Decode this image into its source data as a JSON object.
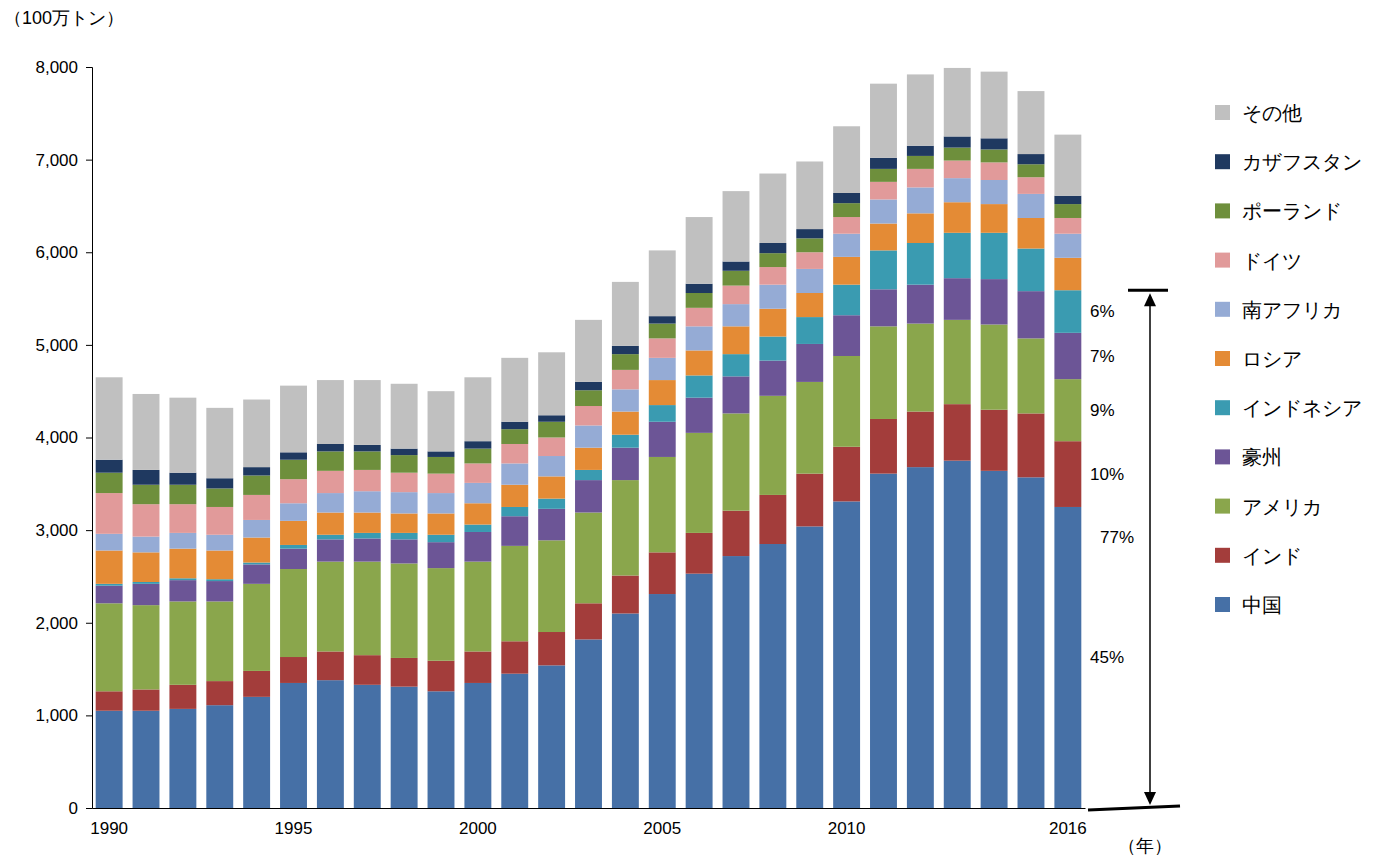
{
  "chart_data": {
    "type": "bar",
    "stacked": true,
    "legend": "right",
    "grid": false,
    "y_label": "（100万トン）",
    "x_label": "（年）",
    "categories": [
      "1990",
      null,
      null,
      null,
      null,
      "1995",
      null,
      null,
      null,
      null,
      "2000",
      null,
      null,
      null,
      null,
      "2005",
      null,
      null,
      null,
      null,
      "2010",
      null,
      null,
      null,
      null,
      null,
      "2016"
    ],
    "ylim": [
      0,
      8000
    ],
    "yticks": [
      0,
      {
        "value": 1000,
        "label": "1,000"
      },
      {
        "value": 2000,
        "label": "2,000"
      },
      {
        "value": 3000,
        "label": "3,000"
      },
      {
        "value": 4000,
        "label": "4,000"
      },
      {
        "value": 5000,
        "label": "5,000"
      },
      {
        "value": 6000,
        "label": "6,000"
      },
      {
        "value": 7000,
        "label": "7,000"
      },
      {
        "value": 8000,
        "label": "8,000"
      }
    ],
    "series": [
      {
        "name": "中国",
        "color": "#4670a6",
        "values": [
          1050,
          1050,
          1070,
          1110,
          1200,
          1350,
          1380,
          1330,
          1310,
          1260,
          1350,
          1450,
          1540,
          1820,
          2100,
          2310,
          2530,
          2720,
          2850,
          3040,
          3310,
          3610,
          3680,
          3750,
          3640,
          3570,
          3250
        ]
      },
      {
        "name": "インド",
        "color": "#a33d3b",
        "values": [
          210,
          230,
          260,
          260,
          280,
          280,
          310,
          320,
          310,
          330,
          340,
          350,
          360,
          390,
          410,
          450,
          440,
          490,
          530,
          570,
          590,
          590,
          600,
          610,
          660,
          690,
          710
        ]
      },
      {
        "name": "アメリカ",
        "color": "#8aa64c",
        "values": [
          950,
          910,
          900,
          860,
          940,
          950,
          970,
          1010,
          1020,
          1000,
          970,
          1030,
          990,
          980,
          1030,
          1030,
          1080,
          1050,
          1070,
          990,
          980,
          1000,
          950,
          910,
          920,
          810,
          670
        ]
      },
      {
        "name": "豪州",
        "color": "#6c5596",
        "values": [
          190,
          230,
          230,
          220,
          210,
          220,
          240,
          250,
          260,
          280,
          320,
          320,
          340,
          350,
          350,
          380,
          380,
          400,
          380,
          410,
          440,
          400,
          420,
          450,
          490,
          510,
          500
        ]
      },
      {
        "name": "インドネシア",
        "color": "#3a9bb1",
        "values": [
          20,
          20,
          20,
          20,
          20,
          40,
          50,
          60,
          70,
          80,
          80,
          100,
          110,
          110,
          140,
          180,
          240,
          240,
          260,
          290,
          330,
          420,
          450,
          490,
          500,
          460,
          460
        ]
      },
      {
        "name": "ロシア",
        "color": "#e48b35",
        "values": [
          360,
          320,
          320,
          310,
          270,
          260,
          240,
          220,
          210,
          230,
          230,
          240,
          240,
          240,
          250,
          270,
          270,
          300,
          300,
          260,
          300,
          290,
          320,
          330,
          310,
          330,
          350
        ]
      },
      {
        "name": "南アフリカ",
        "color": "#95abd5",
        "values": [
          180,
          170,
          170,
          170,
          190,
          190,
          210,
          230,
          230,
          220,
          220,
          230,
          220,
          240,
          240,
          240,
          260,
          240,
          260,
          260,
          250,
          260,
          280,
          260,
          260,
          260,
          260
        ]
      },
      {
        "name": "ドイツ",
        "color": "#e19a9a",
        "values": [
          440,
          350,
          310,
          300,
          270,
          260,
          240,
          230,
          210,
          210,
          210,
          210,
          200,
          210,
          210,
          210,
          200,
          200,
          190,
          180,
          180,
          190,
          200,
          190,
          190,
          180,
          170
        ]
      },
      {
        "name": "ポーランド",
        "color": "#6e8f3c",
        "values": [
          220,
          210,
          210,
          200,
          210,
          210,
          210,
          200,
          190,
          180,
          160,
          160,
          170,
          170,
          170,
          160,
          160,
          160,
          150,
          150,
          150,
          140,
          140,
          140,
          140,
          140,
          150
        ]
      },
      {
        "name": "カザフスタン",
        "color": "#1f3960",
        "values": [
          140,
          160,
          130,
          110,
          90,
          80,
          80,
          70,
          70,
          60,
          80,
          80,
          70,
          90,
          90,
          80,
          100,
          100,
          110,
          100,
          110,
          120,
          110,
          120,
          120,
          110,
          90
        ]
      },
      {
        "name": "その他",
        "color": "#c0c0c0",
        "values": [
          890,
          820,
          810,
          760,
          730,
          720,
          690,
          700,
          700,
          650,
          690,
          690,
          680,
          670,
          690,
          710,
          720,
          760,
          750,
          730,
          720,
          800,
          770,
          740,
          720,
          680,
          660
        ]
      }
    ],
    "annotations": [
      {
        "label": "45%",
        "series": [
          "中国"
        ]
      },
      {
        "label": "10%",
        "series": [
          "インド"
        ]
      },
      {
        "label": "9%",
        "series": [
          "アメリカ"
        ]
      },
      {
        "label": "7%",
        "series": [
          "豪州"
        ]
      },
      {
        "label": "6%",
        "series": [
          "インドネシア"
        ]
      },
      {
        "label": "77%",
        "series": [
          "中国",
          "インド",
          "アメリカ",
          "豪州",
          "インドネシア"
        ]
      }
    ]
  }
}
